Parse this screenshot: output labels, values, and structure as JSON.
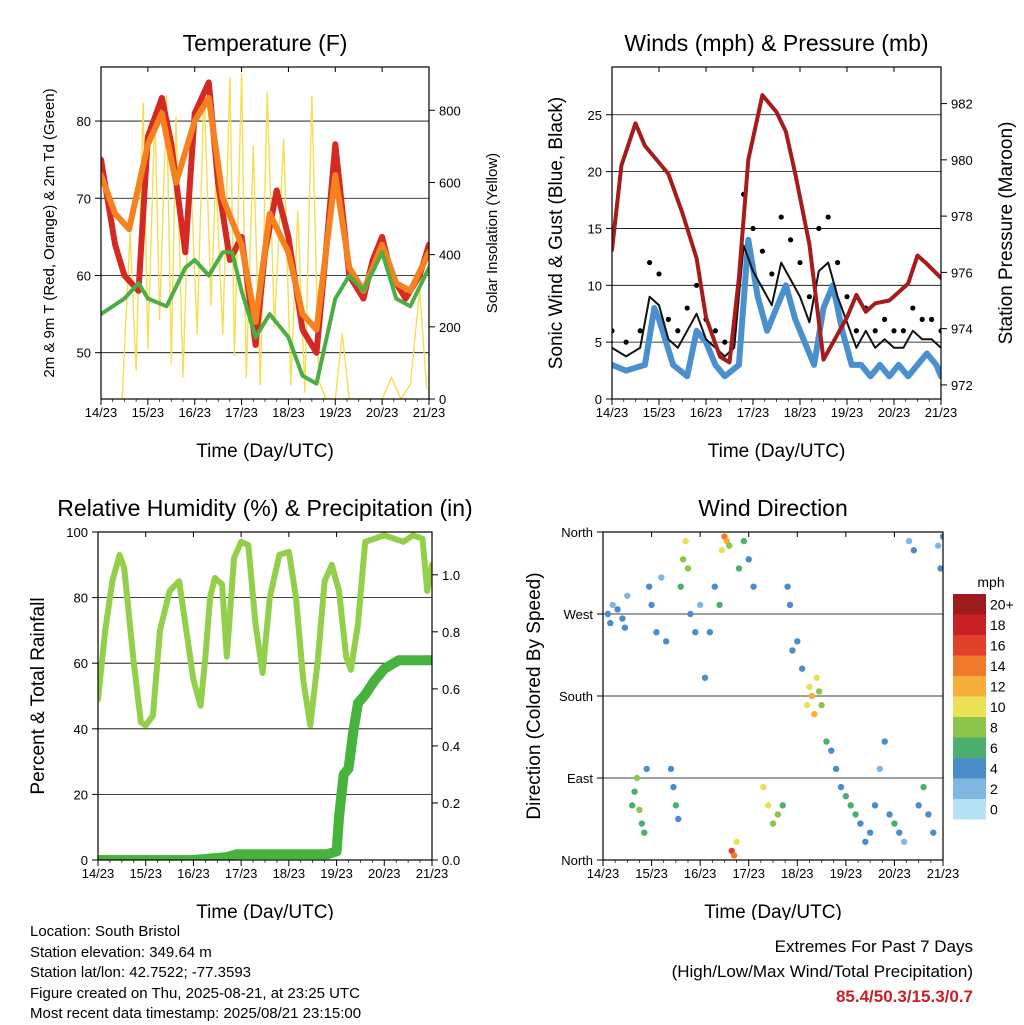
{
  "common": {
    "x_ticks": [
      "14/23",
      "15/23",
      "16/23",
      "17/23",
      "18/23",
      "19/23",
      "20/23",
      "21/23"
    ],
    "x_label": "Time (Day/UTC)"
  },
  "colors": {
    "temp_red": "#d42a23",
    "temp_orange": "#f5811f",
    "dewpoint_green": "#4dad45",
    "solar_yellow": "#f6de52",
    "wind_blue": "#4a90cf",
    "gust_black": "#000000",
    "pressure_maroon": "#a61c1c",
    "rh_green": "#93cf4a",
    "precip_green": "#46b43c",
    "extremes_red": "#c8202a"
  },
  "chart_data": [
    {
      "id": "temperature",
      "type": "line",
      "title": "Temperature (F)",
      "xlabel": "Time (Day/UTC)",
      "ylabel": "2m & 9m T (Red, Orange) & 2m Td (Green)",
      "ylabel_right": "Solar Insolation (Yellow)",
      "ylim": [
        44,
        87
      ],
      "ylim_right": [
        0,
        920
      ],
      "yticks": [
        50,
        60,
        70,
        80
      ],
      "yticks_right": [
        0,
        200,
        400,
        600,
        800
      ],
      "grid": true,
      "series": [
        {
          "key": "t2",
          "color": "#d42a23",
          "x": [
            0,
            0.3,
            0.5,
            0.8,
            1.0,
            1.3,
            1.5,
            1.8,
            2.0,
            2.3,
            2.5,
            2.75,
            3.0,
            3.3,
            3.5,
            3.75,
            4.0,
            4.3,
            4.6,
            4.8,
            5.0,
            5.3,
            5.6,
            5.8,
            6.0,
            6.2,
            6.5,
            6.8,
            7.0
          ],
          "y": [
            75,
            64,
            60,
            58,
            78,
            83,
            77,
            63,
            81,
            85,
            72,
            62,
            65,
            51,
            63,
            71,
            65,
            53,
            50,
            63,
            77,
            60,
            57,
            62,
            65,
            60,
            57,
            60,
            64
          ]
        },
        {
          "key": "t9",
          "color": "#f5811f",
          "x": [
            0,
            0.3,
            0.6,
            1.0,
            1.3,
            1.6,
            2.0,
            2.3,
            2.6,
            3.0,
            3.3,
            3.6,
            4.0,
            4.3,
            4.6,
            5.0,
            5.3,
            5.6,
            6.0,
            6.3,
            6.6,
            7.0
          ],
          "y": [
            73,
            68,
            66,
            77,
            81,
            72,
            80,
            83,
            70,
            64,
            54,
            68,
            63,
            55,
            53,
            73,
            61,
            58,
            64,
            59,
            58,
            63
          ]
        },
        {
          "key": "td",
          "color": "#4dad45",
          "x": [
            0,
            0.5,
            0.8,
            1.0,
            1.4,
            1.8,
            2.0,
            2.3,
            2.6,
            2.8,
            3.0,
            3.3,
            3.6,
            4.0,
            4.3,
            4.6,
            5.0,
            5.3,
            5.6,
            6.0,
            6.3,
            6.6,
            7.0
          ],
          "y": [
            55,
            57,
            59,
            57,
            56,
            61,
            62,
            60,
            63,
            63,
            58,
            52,
            55,
            52,
            47,
            46,
            57,
            60,
            58,
            63,
            57,
            56,
            61
          ]
        }
      ],
      "solar": {
        "color": "#f6de52",
        "x": [
          0.45,
          0.62,
          0.75,
          0.9,
          1.0,
          1.15,
          1.25,
          1.4,
          1.5,
          1.6,
          1.75,
          1.9,
          2.05,
          2.2,
          2.35,
          2.45,
          2.6,
          2.75,
          2.85,
          3.0,
          3.1,
          3.25,
          3.4,
          3.55,
          3.7,
          3.9,
          4.05,
          4.2,
          4.35,
          4.5,
          4.65,
          4.8,
          5.0,
          5.15,
          5.3,
          5.45,
          5.6,
          5.8,
          6.0,
          6.2,
          6.4,
          6.6,
          6.8,
          6.95
        ],
        "y": [
          0,
          460,
          80,
          820,
          140,
          800,
          220,
          840,
          100,
          780,
          60,
          680,
          180,
          860,
          260,
          620,
          180,
          890,
          120,
          900,
          60,
          700,
          40,
          850,
          200,
          720,
          40,
          520,
          20,
          840,
          50,
          0,
          0,
          180,
          0,
          0,
          0,
          0,
          0,
          60,
          0,
          40,
          300,
          30
        ]
      }
    },
    {
      "id": "winds",
      "type": "scatter",
      "title": "Winds (mph) & Pressure (mb)",
      "xlabel": "Time (Day/UTC)",
      "ylabel": "Sonic Wind & Gust (Blue, Black)",
      "ylabel_right": "Station Pressure (Maroon)",
      "ylim": [
        0,
        29.2
      ],
      "ylim_right": [
        971.5,
        983.3
      ],
      "yticks": [
        0,
        5,
        10,
        15,
        20,
        25
      ],
      "yticks_right": [
        972,
        974,
        976,
        978,
        980,
        982
      ],
      "grid": true,
      "series": [
        {
          "key": "pressure",
          "color": "#a61c1c",
          "x": [
            0,
            0.2,
            0.5,
            0.7,
            0.9,
            1.2,
            1.5,
            1.8,
            2.0,
            2.3,
            2.5,
            2.7,
            2.9,
            3.2,
            3.5,
            3.7,
            3.9,
            4.2,
            4.5,
            4.7,
            5.0,
            5.2,
            5.4,
            5.6,
            5.9,
            6.1,
            6.3,
            6.5,
            6.7,
            7.0
          ],
          "y": [
            976.8,
            979.8,
            981.3,
            980.5,
            980.1,
            979.5,
            978.1,
            976.5,
            974.4,
            973.0,
            972.8,
            975.8,
            980.0,
            982.3,
            981.7,
            981.0,
            979.5,
            977.0,
            972.9,
            973.5,
            974.4,
            975.2,
            974.6,
            974.9,
            975.0,
            975.3,
            975.6,
            976.6,
            976.3,
            975.8
          ]
        },
        {
          "key": "wind",
          "color": "#4a90cf",
          "x": [
            0,
            0.3,
            0.7,
            0.9,
            1.0,
            1.3,
            1.6,
            1.8,
            2.0,
            2.2,
            2.4,
            2.7,
            2.9,
            3.1,
            3.3,
            3.5,
            3.7,
            3.9,
            4.1,
            4.3,
            4.5,
            4.7,
            4.9,
            5.1,
            5.3,
            5.5,
            5.7,
            5.9,
            6.1,
            6.3,
            6.5,
            6.7,
            6.9,
            7.0
          ],
          "y": [
            3,
            2.5,
            3,
            8,
            7,
            3,
            2,
            6,
            5,
            3,
            2,
            3,
            14,
            9,
            6,
            8,
            10,
            7,
            5,
            3,
            8,
            10,
            6,
            3,
            3,
            2,
            3,
            2,
            3,
            2,
            3,
            4,
            3,
            2
          ]
        },
        {
          "key": "gust",
          "color": "#000000",
          "x": [
            0,
            0.3,
            0.6,
            0.8,
            1.0,
            1.2,
            1.4,
            1.6,
            1.8,
            2.0,
            2.2,
            2.4,
            2.6,
            2.8,
            3.0,
            3.2,
            3.4,
            3.6,
            3.8,
            4.0,
            4.2,
            4.4,
            4.6,
            4.8,
            5.0,
            5.2,
            5.4,
            5.6,
            5.8,
            6.0,
            6.2,
            6.4,
            6.6,
            6.8,
            7.0
          ],
          "y": [
            6,
            5,
            6,
            12,
            11,
            7,
            6,
            8,
            10,
            7,
            6,
            5,
            6,
            18,
            15,
            13,
            11,
            16,
            14,
            12,
            9,
            15,
            16,
            12,
            9,
            6,
            8,
            6,
            7,
            6,
            6,
            8,
            7,
            7,
            6
          ]
        }
      ]
    },
    {
      "id": "humidity",
      "type": "line",
      "title": "Relative Humidity (%) & Precipitation (in)",
      "xlabel": "Time (Day/UTC)",
      "ylabel": "Percent & Total Rainfall",
      "ylim": [
        0,
        100
      ],
      "ylim_right": [
        0,
        1.15
      ],
      "yticks": [
        0,
        20,
        40,
        60,
        80,
        100
      ],
      "yticks_right": [
        "0.0",
        "0.2",
        "0.4",
        "0.6",
        "0.8",
        "1.0"
      ],
      "grid": true,
      "series": [
        {
          "key": "rh",
          "color": "#93cf4a",
          "x": [
            0,
            0.15,
            0.3,
            0.45,
            0.55,
            0.75,
            0.9,
            1.0,
            1.15,
            1.3,
            1.5,
            1.7,
            1.85,
            2.0,
            2.15,
            2.25,
            2.35,
            2.45,
            2.6,
            2.7,
            2.85,
            3.0,
            3.15,
            3.3,
            3.45,
            3.6,
            3.8,
            4.0,
            4.15,
            4.3,
            4.45,
            4.6,
            4.75,
            4.9,
            5.05,
            5.2,
            5.3,
            5.45,
            5.6,
            5.8,
            6.0,
            6.2,
            6.4,
            6.6,
            6.8,
            6.9,
            7.0
          ],
          "y": [
            49,
            70,
            85,
            93,
            89,
            60,
            42,
            41,
            44,
            70,
            82,
            85,
            70,
            55,
            47,
            62,
            80,
            86,
            84,
            62,
            92,
            97,
            96,
            72,
            57,
            80,
            93,
            94,
            80,
            55,
            41,
            60,
            85,
            90,
            82,
            62,
            58,
            72,
            97,
            98,
            99,
            98,
            97,
            99,
            98,
            82,
            90
          ]
        },
        {
          "key": "precip",
          "color": "#46b43c",
          "x": [
            0,
            1.0,
            2.0,
            2.7,
            2.9,
            4.0,
            4.8,
            5.0,
            5.05,
            5.15,
            5.25,
            5.35,
            5.45,
            5.6,
            5.8,
            6.0,
            6.3,
            6.6,
            7.0
          ],
          "y": [
            0,
            0,
            0,
            0.01,
            0.02,
            0.02,
            0.02,
            0.03,
            0.15,
            0.3,
            0.32,
            0.45,
            0.55,
            0.58,
            0.63,
            0.67,
            0.7,
            0.7,
            0.7
          ]
        }
      ]
    },
    {
      "id": "direction",
      "type": "scatter",
      "title": "Wind Direction",
      "xlabel": "Time (Day/UTC)",
      "ylabel": "Direction (Colored By Speed)",
      "ylim": [
        0,
        360
      ],
      "ycategories": [
        "North",
        "East",
        "South",
        "West",
        "North"
      ],
      "yticks": [
        0,
        90,
        180,
        270,
        360
      ],
      "grid": true,
      "legend": {
        "title": "mph",
        "placement": "right",
        "labels": [
          "20+",
          "18",
          "16",
          "14",
          "12",
          "10",
          "8",
          "6",
          "4",
          "2",
          "0"
        ],
        "colors": [
          "#9e1a1f",
          "#c82026",
          "#e2402a",
          "#f07a2c",
          "#f8ae3d",
          "#ebe157",
          "#8dc44b",
          "#4daf6e",
          "#4a8dc9",
          "#7fb6e2",
          "#b7e1f4"
        ]
      },
      "points": [
        [
          0.1,
          270,
          3
        ],
        [
          0.15,
          260,
          4
        ],
        [
          0.2,
          280,
          2
        ],
        [
          0.3,
          275,
          3
        ],
        [
          0.4,
          265,
          4
        ],
        [
          0.45,
          255,
          3
        ],
        [
          0.5,
          290,
          2
        ],
        [
          0.6,
          60,
          5
        ],
        [
          0.65,
          75,
          6
        ],
        [
          0.7,
          90,
          8
        ],
        [
          0.75,
          55,
          7
        ],
        [
          0.8,
          40,
          6
        ],
        [
          0.85,
          30,
          5
        ],
        [
          0.9,
          100,
          4
        ],
        [
          0.95,
          300,
          3
        ],
        [
          1.0,
          280,
          3
        ],
        [
          1.1,
          250,
          4
        ],
        [
          1.2,
          310,
          2
        ],
        [
          1.3,
          240,
          3
        ],
        [
          1.4,
          100,
          3
        ],
        [
          1.45,
          80,
          4
        ],
        [
          1.5,
          60,
          5
        ],
        [
          1.55,
          45,
          4
        ],
        [
          1.6,
          300,
          6
        ],
        [
          1.65,
          330,
          8
        ],
        [
          1.7,
          350,
          9
        ],
        [
          1.75,
          320,
          7
        ],
        [
          1.8,
          270,
          4
        ],
        [
          1.9,
          250,
          3
        ],
        [
          2.0,
          280,
          2
        ],
        [
          2.1,
          200,
          3
        ],
        [
          2.2,
          250,
          4
        ],
        [
          2.3,
          300,
          3
        ],
        [
          2.4,
          280,
          6
        ],
        [
          2.45,
          340,
          10
        ],
        [
          2.5,
          355,
          14
        ],
        [
          2.55,
          350,
          12
        ],
        [
          2.6,
          345,
          8
        ],
        [
          2.65,
          10,
          16
        ],
        [
          2.7,
          5,
          14
        ],
        [
          2.75,
          20,
          10
        ],
        [
          2.8,
          320,
          6
        ],
        [
          2.9,
          350,
          5
        ],
        [
          3.0,
          330,
          4
        ],
        [
          3.1,
          300,
          3
        ],
        [
          3.3,
          80,
          10
        ],
        [
          3.4,
          60,
          9
        ],
        [
          3.5,
          40,
          8
        ],
        [
          3.6,
          50,
          7
        ],
        [
          3.7,
          60,
          6
        ],
        [
          3.8,
          300,
          4
        ],
        [
          3.85,
          280,
          3
        ],
        [
          3.9,
          230,
          4
        ],
        [
          4.0,
          240,
          3
        ],
        [
          4.1,
          210,
          4
        ],
        [
          4.2,
          170,
          9
        ],
        [
          4.25,
          190,
          10
        ],
        [
          4.3,
          180,
          12
        ],
        [
          4.35,
          160,
          11
        ],
        [
          4.4,
          200,
          9
        ],
        [
          4.45,
          185,
          8
        ],
        [
          4.5,
          170,
          7
        ],
        [
          4.6,
          130,
          5
        ],
        [
          4.7,
          120,
          4
        ],
        [
          4.8,
          100,
          3
        ],
        [
          4.9,
          80,
          4
        ],
        [
          5.0,
          70,
          5
        ],
        [
          5.1,
          60,
          6
        ],
        [
          5.2,
          50,
          5
        ],
        [
          5.3,
          40,
          4
        ],
        [
          5.4,
          20,
          3
        ],
        [
          5.5,
          30,
          4
        ],
        [
          5.6,
          60,
          3
        ],
        [
          5.7,
          100,
          2
        ],
        [
          5.8,
          130,
          3
        ],
        [
          5.9,
          50,
          4
        ],
        [
          6.0,
          40,
          5
        ],
        [
          6.1,
          30,
          3
        ],
        [
          6.2,
          20,
          2
        ],
        [
          6.3,
          350,
          2
        ],
        [
          6.4,
          340,
          3
        ],
        [
          6.5,
          60,
          4
        ],
        [
          6.6,
          80,
          5
        ],
        [
          6.7,
          50,
          4
        ],
        [
          6.8,
          30,
          3
        ],
        [
          6.9,
          345,
          2
        ],
        [
          6.95,
          320,
          3
        ],
        [
          7.0,
          355,
          4
        ]
      ]
    }
  ],
  "info": {
    "location": "Location: South Bristol",
    "elevation": "Station elevation: 349.64 m",
    "latlon": "Station lat/lon: 42.7522; -77.3593",
    "created": "Figure created on Thu, 2025-08-21, at 23:25 UTC",
    "timestamp": "Most recent data timestamp: 2025/08/21 23:15:00"
  },
  "extremes": {
    "line1": "Extremes For Past 7 Days",
    "line2": "(High/Low/Max Wind/Total Precipitation)",
    "values": "85.4/50.3/15.3/0.7"
  }
}
